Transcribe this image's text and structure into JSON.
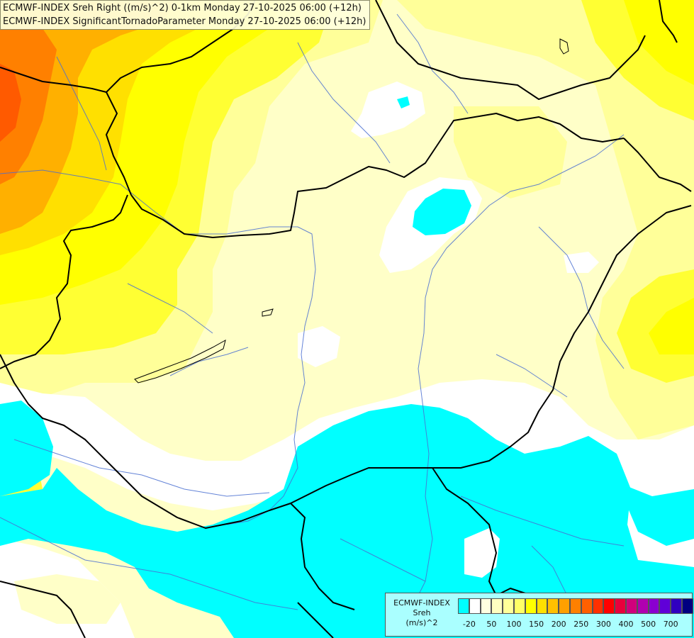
{
  "title": {
    "line1": "ECMWF-INDEX Sreh Right ((m/s)^2) 0-1km Monday 27-10-2025 06:00 (+12h)",
    "line2": "ECMWF-INDEX SignificantTornadoParameter Monday 27-10-2025 06:00 (+12h)"
  },
  "legend": {
    "line1": "ECMWF-INDEX",
    "line2": "Sreh",
    "line3": "(m/s)^2",
    "colors": [
      "#00ffff",
      "#ffffff",
      "#ffffe0",
      "#ffffc0",
      "#ffff99",
      "#ffff66",
      "#ffff00",
      "#ffe000",
      "#ffc000",
      "#ffa000",
      "#ff8000",
      "#ff6000",
      "#ff3000",
      "#ff0000",
      "#e8003c",
      "#d0007c",
      "#b000b0",
      "#8a00d0",
      "#6000d8",
      "#3000c0",
      "#000080"
    ],
    "ticks": [
      "-20",
      "50",
      "100",
      "150",
      "200",
      "250",
      "300",
      "400",
      "500",
      "700"
    ]
  },
  "map": {
    "field_colors": {
      "cyan": "#00ffff",
      "white": "#ffffff",
      "pale_yellow": "#ffffc8",
      "light_yellow": "#ffff99",
      "yellow": "#ffff33",
      "deep_yellow": "#ffff00",
      "light_orange": "#ffe000",
      "orange": "#ffb000",
      "dark_orange": "#ff8000",
      "red_orange": "#ff5a00"
    },
    "border_color": "#000000",
    "river_color": "#4a6fd1"
  }
}
